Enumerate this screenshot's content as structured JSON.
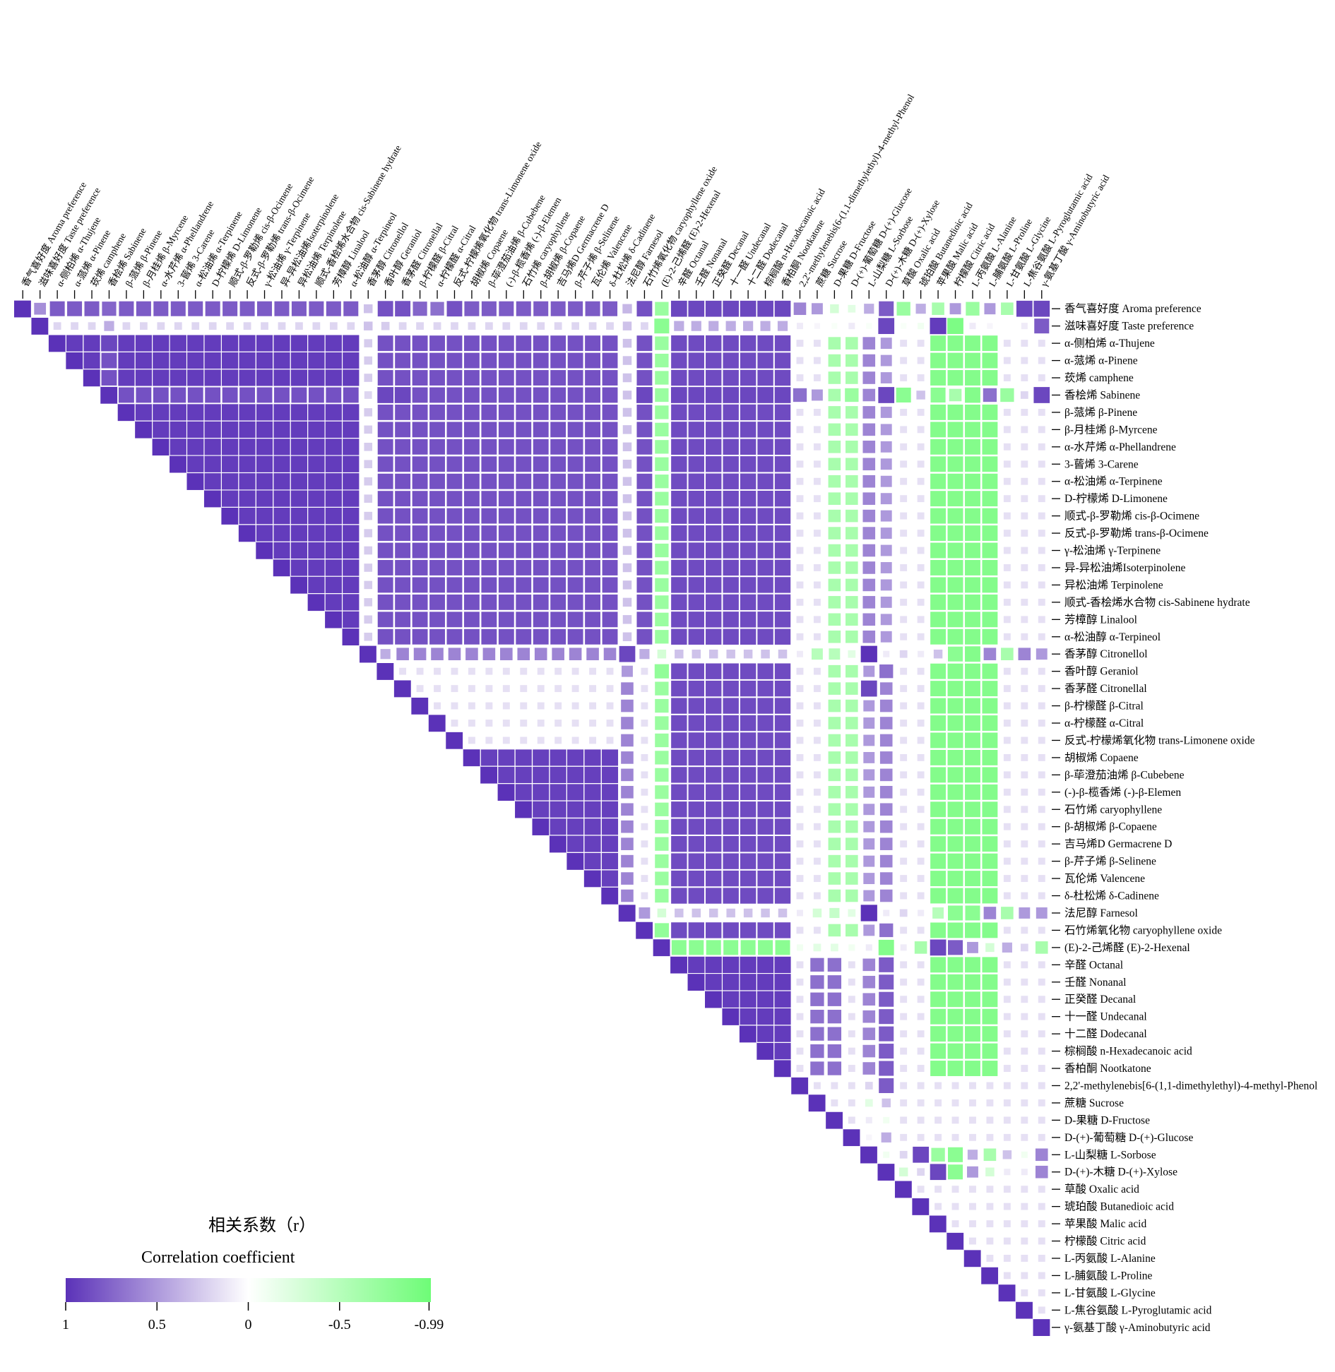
{
  "chart_data": {
    "type": "heatmap",
    "title": "",
    "variables": [
      "香气喜好度 Aroma preference",
      "滋味喜好度 Taste preference",
      "α-侧柏烯 α-Thujene",
      "α-蒎烯 α-Pinene",
      "莰烯 camphene",
      "香桧烯 Sabinene",
      "β-蒎烯 β-Pinene",
      "β-月桂烯 β-Myrcene",
      "α-水芹烯 α-Phellandrene",
      "3-蒈烯 3-Carene",
      "α-松油烯 α-Terpinene",
      "D-柠檬烯 D-Limonene",
      "顺式-β-罗勒烯 cis-β-Ocimene",
      "反式-β-罗勒烯 trans-β-Ocimene",
      "γ-松油烯 γ-Terpinene",
      "异-异松油烯Isoterpinolene",
      "异松油烯 Terpinolene",
      "顺式-香桧烯水合物 cis-Sabinene hydrate",
      "芳樟醇 Linalool",
      "α-松油醇 α-Terpineol",
      "香茅醇 Citronellol",
      "香叶醇 Geraniol",
      "香茅醛 Citronellal",
      "β-柠檬醛 β-Citral",
      "α-柠檬醛 α-Citral",
      "反式-柠檬烯氧化物 trans-Limonene oxide",
      "胡椒烯 Copaene",
      "β-荜澄茄油烯 β-Cubebene",
      "(-)-β-榄香烯 (-)-β-Elemen",
      "石竹烯 caryophyllene",
      "β-胡椒烯 β-Copaene",
      "吉马烯D Germacrene D",
      "β-芹子烯 β-Selinene",
      "瓦伦烯 Valencene",
      "δ-杜松烯 δ-Cadinene",
      "法尼醇 Farnesol",
      "石竹烯氧化物 caryophyllene oxide",
      "(E)-2-己烯醛 (E)-2-Hexenal",
      "辛醛 Octanal",
      "壬醛 Nonanal",
      "正癸醛 Decanal",
      "十一醛 Undecanal",
      "十二醛 Dodecanal",
      "棕榈酸 n-Hexadecanoic acid",
      "香柏酮 Nootkatone",
      "2,2'-methylenebis[6-(1,1-dimethylethyl)-4-methyl-Phenol",
      "蔗糖 Sucrose",
      "D-果糖 D-Fructose",
      "D-(+)-葡萄糖 D-(+)-Glucose",
      "L-山梨糖 L-Sorbose",
      "D-(+)-木糖 D-(+)-Xylose",
      "草酸 Oxalic acid",
      "琥珀酸 Butanedioic acid",
      "苹果酸 Malic acid",
      "柠檬酸 Citric acid",
      "L-丙氨酸 L-Alanine",
      "L-脯氨酸 L-Proline",
      "L-甘氨酸 L-Glycine",
      "L-焦谷氨酸 L-Pyroglutamic acid",
      "γ-氨基丁酸 γ-Aminobutyric acid"
    ],
    "group_blocks": [
      {
        "range": [
          2,
          19
        ],
        "value": 0.95
      },
      {
        "range": [
          26,
          34
        ],
        "value": 0.93
      },
      {
        "range": [
          38,
          44
        ],
        "value": 0.95
      }
    ],
    "group_pairs": [
      {
        "a": [
          2,
          19
        ],
        "b": [
          21,
          36
        ],
        "value": 0.85
      },
      {
        "a": [
          21,
          36
        ],
        "b": [
          38,
          44
        ],
        "value": 0.9
      },
      {
        "a": [
          2,
          36
        ],
        "b": [
          38,
          44
        ],
        "value": 0.88
      },
      {
        "a": [
          38,
          44
        ],
        "b": [
          46,
          47
        ],
        "value": 0.7
      },
      {
        "a": [
          38,
          44
        ],
        "b": [
          53,
          56
        ],
        "value": -0.85
      },
      {
        "a": [
          2,
          36
        ],
        "b": [
          53,
          56
        ],
        "value": -0.85
      },
      {
        "a": [
          2,
          36
        ],
        "b": [
          47,
          48
        ],
        "value": -0.6
      }
    ],
    "variable_profiles": [
      {
        "index": 0,
        "values": [
          1,
          0.55,
          0.8,
          0.8,
          0.8,
          0.75,
          0.8,
          0.8,
          0.8,
          0.8,
          0.8,
          0.8,
          0.8,
          0.8,
          0.8,
          0.8,
          0.8,
          0.8,
          0.8,
          0.8,
          0.3,
          0.85,
          0.85,
          0.75,
          0.7,
          0.85,
          0.8,
          0.8,
          0.8,
          0.8,
          0.8,
          0.8,
          0.8,
          0.8,
          0.8,
          0.35,
          0.85,
          -0.7,
          0.9,
          0.9,
          0.9,
          0.9,
          0.9,
          0.9,
          0.9,
          0.6,
          0.5,
          -0.3,
          -0.2,
          0.4,
          0.8,
          -0.7,
          0.4,
          -0.6,
          0.5,
          -0.7,
          0.5,
          -0.6,
          0.9,
          0.9
        ]
      },
      {
        "index": 1,
        "values": [
          0.55,
          1,
          0.2,
          0.2,
          0.2,
          0.4,
          0.2,
          0.2,
          0.2,
          0.2,
          0.2,
          0.2,
          0.2,
          0.2,
          0.2,
          0.2,
          0.2,
          0.2,
          0.2,
          0.2,
          0.3,
          0.25,
          0.2,
          0.2,
          0.2,
          0.2,
          0.2,
          0.2,
          0.2,
          0.2,
          0.2,
          0.2,
          0.2,
          0.2,
          0.2,
          0.3,
          0.2,
          -0.8,
          0.4,
          0.4,
          0.4,
          0.4,
          0.4,
          0.4,
          0.4,
          0.1,
          0.05,
          -0.05,
          0.1,
          -0.05,
          0.9,
          -0.05,
          -0.1,
          0.95,
          -0.9,
          0.1,
          0.05,
          0.0,
          0.1,
          0.8
        ]
      },
      {
        "index": 5,
        "values": [
          0.75,
          0.4,
          0.9,
          0.85,
          0.85,
          1,
          0.85,
          0.85,
          0.85,
          0.85,
          0.85,
          0.85,
          0.85,
          0.85,
          0.85,
          0.85,
          0.85,
          0.85,
          0.85,
          0.85,
          0.2,
          0.9,
          0.9,
          0.85,
          0.85,
          0.85,
          0.85,
          0.85,
          0.85,
          0.85,
          0.85,
          0.85,
          0.85,
          0.85,
          0.85,
          0.3,
          0.9,
          -0.7,
          0.9,
          0.9,
          0.9,
          0.9,
          0.9,
          0.9,
          0.9,
          0.7,
          0.5,
          -0.6,
          -0.7,
          0.6,
          0.9,
          -0.8,
          0.3,
          -0.8,
          -0.6,
          -0.85,
          0.7,
          -0.7,
          0.2,
          0.9
        ]
      },
      {
        "index": 20,
        "values": [
          0.3,
          0.3,
          0.25,
          0.25,
          0.25,
          0.2,
          0.25,
          0.25,
          0.25,
          0.25,
          0.25,
          0.25,
          0.25,
          0.25,
          0.25,
          0.25,
          0.25,
          0.25,
          0.25,
          0.25,
          1,
          0.4,
          0.6,
          0.6,
          0.6,
          0.6,
          0.6,
          0.6,
          0.6,
          0.6,
          0.6,
          0.6,
          0.6,
          0.6,
          0.6,
          0.9,
          0.4,
          -0.3,
          0.3,
          0.3,
          0.3,
          0.3,
          0.3,
          0.3,
          0.3,
          0.1,
          -0.5,
          -0.5,
          -0.2,
          1,
          0.1,
          0.2,
          0.1,
          0.3,
          -0.8,
          -0.85,
          0.6,
          -0.6,
          0.6,
          0.5
        ]
      },
      {
        "index": 35,
        "values": [
          0.35,
          0.3,
          0.3,
          0.3,
          0.3,
          0.3,
          0.3,
          0.3,
          0.3,
          0.3,
          0.3,
          0.3,
          0.3,
          0.3,
          0.3,
          0.3,
          0.3,
          0.3,
          0.3,
          0.3,
          0.9,
          0.5,
          0.6,
          0.6,
          0.6,
          0.6,
          0.6,
          0.6,
          0.6,
          0.6,
          0.6,
          0.6,
          0.6,
          0.6,
          0.6,
          1,
          0.5,
          -0.3,
          0.3,
          0.3,
          0.3,
          0.3,
          0.3,
          0.3,
          0.3,
          0.1,
          -0.3,
          -0.4,
          -0.2,
          1,
          0.1,
          0.2,
          0.1,
          -0.5,
          -0.8,
          -0.8,
          0.6,
          -0.6,
          0.5,
          0.5
        ]
      },
      {
        "index": 37,
        "values": [
          -0.7,
          -0.8,
          -0.7,
          -0.7,
          -0.7,
          -0.7,
          -0.7,
          -0.7,
          -0.7,
          -0.7,
          -0.7,
          -0.7,
          -0.7,
          -0.7,
          -0.7,
          -0.7,
          -0.7,
          -0.7,
          -0.7,
          -0.7,
          -0.3,
          -0.75,
          -0.7,
          -0.7,
          -0.7,
          -0.7,
          -0.7,
          -0.7,
          -0.7,
          -0.7,
          -0.7,
          -0.7,
          -0.7,
          -0.7,
          -0.7,
          -0.3,
          -0.75,
          1,
          -0.8,
          -0.8,
          -0.8,
          -0.8,
          -0.8,
          -0.8,
          -0.8,
          -0.1,
          -0.2,
          -0.2,
          -0.1,
          0.1,
          -0.85,
          0.1,
          -0.6,
          0.9,
          0.8,
          0.5,
          -0.3,
          0.4,
          0.2,
          -0.6
        ]
      },
      {
        "index": 49,
        "values": [
          0.4,
          -0.05,
          0.6,
          0.6,
          0.6,
          0.6,
          0.6,
          0.6,
          0.6,
          0.6,
          0.6,
          0.6,
          0.6,
          0.6,
          0.6,
          0.6,
          0.6,
          0.6,
          0.6,
          0.6,
          1,
          0.5,
          0.9,
          0.5,
          0.5,
          0.5,
          0.5,
          0.5,
          0.5,
          0.5,
          0.5,
          0.5,
          0.5,
          0.5,
          0.5,
          1,
          0.5,
          0.1,
          0.6,
          0.6,
          0.6,
          0.6,
          0.6,
          0.6,
          0.6,
          0.2,
          -0.2,
          0.1,
          0.05,
          1,
          -0.1,
          0.2,
          0.9,
          -0.7,
          -0.8,
          0.4,
          -0.6,
          0.3,
          -0.1,
          0.6
        ]
      },
      {
        "index": 50,
        "values": [
          0.8,
          0.9,
          0.5,
          0.5,
          0.5,
          0.9,
          0.5,
          0.5,
          0.5,
          0.5,
          0.5,
          0.5,
          0.5,
          0.5,
          0.5,
          0.5,
          0.5,
          0.5,
          0.5,
          0.5,
          0.1,
          0.7,
          0.6,
          0.6,
          0.6,
          0.6,
          0.6,
          0.6,
          0.6,
          0.6,
          0.6,
          0.6,
          0.6,
          0.6,
          0.6,
          0.1,
          0.7,
          -0.85,
          0.8,
          0.8,
          0.8,
          0.8,
          0.8,
          0.8,
          0.8,
          0.8,
          0.3,
          -0.1,
          0.4,
          -0.1,
          1,
          -0.3,
          0.2,
          0.9,
          -0.8,
          0.5,
          -0.3,
          0.1,
          0.1,
          0.6
        ]
      }
    ],
    "legend": {
      "title_cn": "相关系数（r）",
      "title_en": "Correlation coefficient",
      "ticks": [
        "1",
        "0.5",
        "0",
        "-0.5",
        "-0.99"
      ],
      "tick_values": [
        1,
        0.5,
        0,
        -0.5,
        -0.99
      ],
      "color_low": "#ffffff",
      "color_positive": "#5b32b8",
      "color_negative": "#6efc77",
      "placement": "bottom-left"
    },
    "xlabel": "",
    "ylabel": ""
  }
}
